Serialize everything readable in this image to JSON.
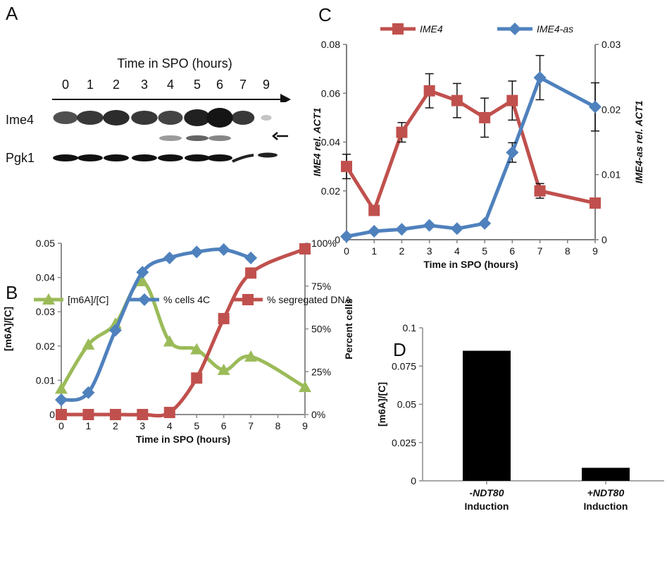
{
  "panels": {
    "A": {
      "letter": "A",
      "title": "Time in SPO (hours)",
      "lanes": [
        "0",
        "1",
        "2",
        "3",
        "4",
        "5",
        "6",
        "7",
        "9"
      ],
      "rows": [
        "Ime4",
        "Pgk1"
      ]
    },
    "B": {
      "letter": "B"
    },
    "C": {
      "letter": "C"
    },
    "D": {
      "letter": "D"
    }
  },
  "chart_data": [
    {
      "id": "C",
      "type": "line",
      "x": [
        0,
        1,
        2,
        3,
        4,
        5,
        6,
        7,
        9
      ],
      "xticks": [
        "0",
        "1",
        "2",
        "3",
        "4",
        "5",
        "6",
        "7",
        "8",
        "9"
      ],
      "xlabel": "Time in SPO (hours)",
      "ylabel": "IME4 rel. ACT1",
      "y2label": "IME4-as rel. ACT1",
      "ylim": [
        0,
        0.08
      ],
      "yticks": [
        "0",
        "0.02",
        "0.04",
        "0.06",
        "0.08"
      ],
      "y2lim": [
        0,
        0.03
      ],
      "y2ticks": [
        "0",
        "0.01",
        "0.02",
        "0.03"
      ],
      "legend": "top",
      "series": [
        {
          "name": "IME4",
          "axis": "left",
          "color": "#c0504d",
          "marker": "square",
          "values": [
            0.03,
            0.012,
            0.044,
            0.061,
            0.057,
            0.05,
            0.057,
            0.02,
            0.015
          ],
          "err": [
            0.005,
            0,
            0.004,
            0.007,
            0.007,
            0.008,
            0.008,
            0.003,
            0
          ]
        },
        {
          "name": "IME4-as",
          "axis": "right",
          "color": "#4f81bd",
          "marker": "diamond",
          "values": [
            0.0005,
            0.0013,
            0.0016,
            0.0022,
            0.0017,
            0.0025,
            0.0134,
            0.0249,
            0.0204
          ],
          "err": [
            0,
            0,
            0,
            0,
            0,
            0,
            0.0015,
            0.0034,
            0.0037
          ]
        }
      ]
    },
    {
      "id": "B",
      "type": "line",
      "x": [
        0,
        1,
        2,
        3,
        4,
        5,
        6,
        7,
        9
      ],
      "xticks": [
        "0",
        "1",
        "2",
        "3",
        "4",
        "5",
        "6",
        "7",
        "8",
        "9"
      ],
      "xlabel": "Time in SPO (hours)",
      "ylabel": "[m6A]/[C]",
      "y2label": "Percent cells",
      "ylim": [
        0,
        0.05
      ],
      "yticks": [
        "0",
        "0.01",
        "0.02",
        "0.03",
        "0.04",
        "0.05"
      ],
      "y2lim": [
        0,
        100
      ],
      "y2ticks": [
        "0%",
        "25%",
        "50%",
        "75%",
        "100%"
      ],
      "legend": "top",
      "series": [
        {
          "name": "[m6A]/[C]",
          "axis": "left",
          "color": "#9bbb59",
          "marker": "triangle",
          "values": [
            0.0075,
            0.0204,
            0.0265,
            0.0389,
            0.0213,
            0.019,
            0.013,
            0.0169,
            0.008
          ]
        },
        {
          "name": "% cells 4C",
          "axis": "right",
          "color": "#4f81bd",
          "marker": "diamond",
          "values": [
            8.6,
            12.8,
            49.2,
            83.1,
            91.4,
            94.9,
            96.3,
            91.4,
            null
          ]
        },
        {
          "name": "% segregated DNA",
          "axis": "right",
          "color": "#c0504d",
          "marker": "square",
          "values": [
            0,
            0,
            0,
            0,
            1.2,
            21.3,
            56.0,
            82.6,
            96.7
          ]
        }
      ]
    },
    {
      "id": "D",
      "type": "bar",
      "categories": [
        {
          "italic": "-NDT80",
          "plain": "Induction"
        },
        {
          "italic": "+NDT80",
          "plain": "Induction"
        }
      ],
      "values": [
        0.085,
        0.0085
      ],
      "color": "#000000",
      "ylabel": "[m6A]/[C]",
      "ylim": [
        0,
        0.1
      ],
      "yticks": [
        "0",
        "0.025",
        "0.05",
        "0.075",
        "0.1"
      ]
    }
  ]
}
